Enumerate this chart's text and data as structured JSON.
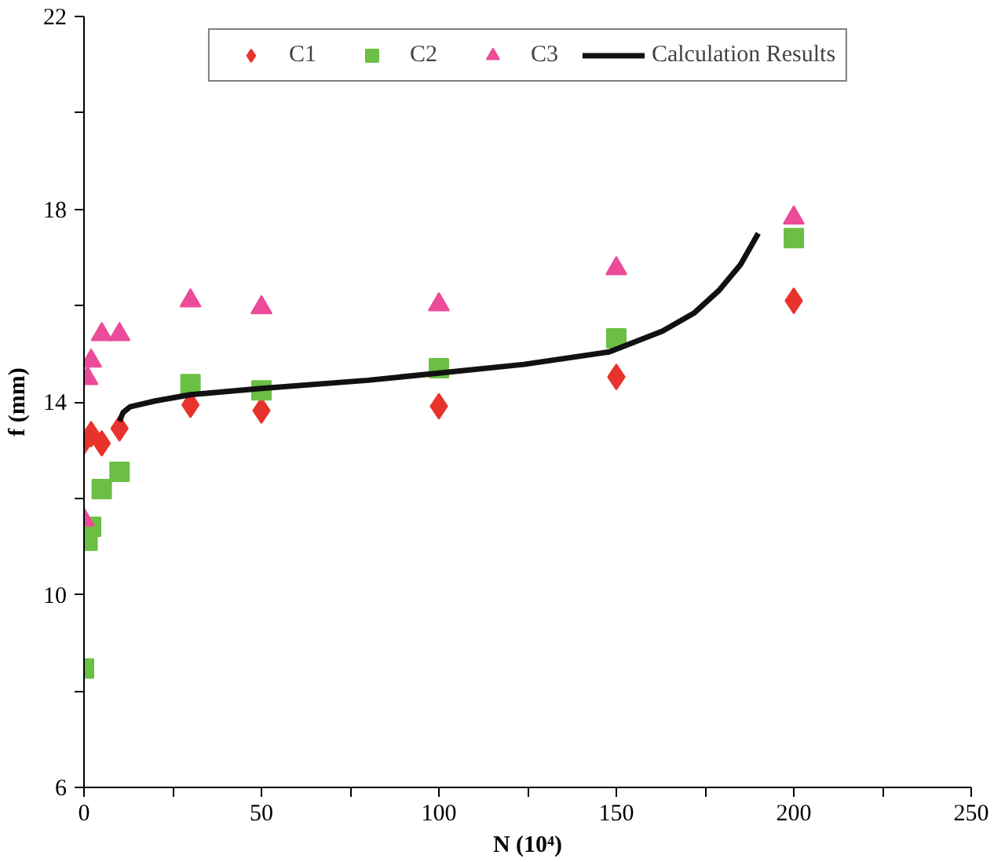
{
  "chart_data": {
    "type": "scatter",
    "xlabel": "N (10⁴)",
    "ylabel": "f (mm)",
    "xlim": [
      0,
      250
    ],
    "ylim": [
      6,
      22
    ],
    "xticks": [
      0,
      {
        "value": 25,
        "label": null
      },
      50,
      {
        "value": 75,
        "label": null
      },
      100,
      {
        "value": 125,
        "label": null
      },
      150,
      {
        "value": 175,
        "label": null
      },
      200,
      {
        "value": 225,
        "label": null
      },
      250
    ],
    "yticks": [
      6,
      {
        "value": 8,
        "label": null
      },
      10,
      {
        "value": 12,
        "label": null
      },
      14,
      {
        "value": 16,
        "label": null
      },
      18,
      {
        "value": 20,
        "label": null
      },
      22
    ],
    "grid": false,
    "legend": "top",
    "series": [
      {
        "name": "C1",
        "color": "#e8332c",
        "marker": "diamond",
        "x": [
          0,
          2,
          5,
          10,
          30,
          50,
          100,
          150,
          200
        ],
        "values": [
          13.18,
          13.33,
          13.14,
          13.45,
          13.94,
          13.82,
          13.91,
          14.52,
          16.1
        ]
      },
      {
        "name": "C2",
        "color": "#6bbf45",
        "marker": "square",
        "x": [
          0,
          1,
          2,
          5,
          10,
          30,
          50,
          100,
          150,
          200
        ],
        "values": [
          8.47,
          11.12,
          11.41,
          12.19,
          12.55,
          14.37,
          14.24,
          14.7,
          15.32,
          17.4
        ]
      },
      {
        "name": "C3",
        "color": "#ec4b9a",
        "marker": "triangle",
        "x": [
          0,
          1,
          2,
          5,
          10,
          30,
          50,
          100,
          150,
          200
        ],
        "values": [
          11.55,
          14.49,
          14.85,
          15.4,
          15.4,
          16.1,
          15.96,
          16.02,
          16.77,
          17.82
        ]
      },
      {
        "name": "Calculation Results",
        "type": "line",
        "color": "#111111",
        "line_style": "solid",
        "x": [
          10,
          11,
          13,
          20,
          30,
          50,
          80,
          100,
          124,
          148,
          163,
          172,
          179,
          185,
          190
        ],
        "values": [
          13.6,
          13.78,
          13.9,
          14.02,
          14.15,
          14.28,
          14.45,
          14.6,
          14.78,
          15.04,
          15.47,
          15.85,
          16.32,
          16.85,
          17.5
        ]
      }
    ]
  }
}
